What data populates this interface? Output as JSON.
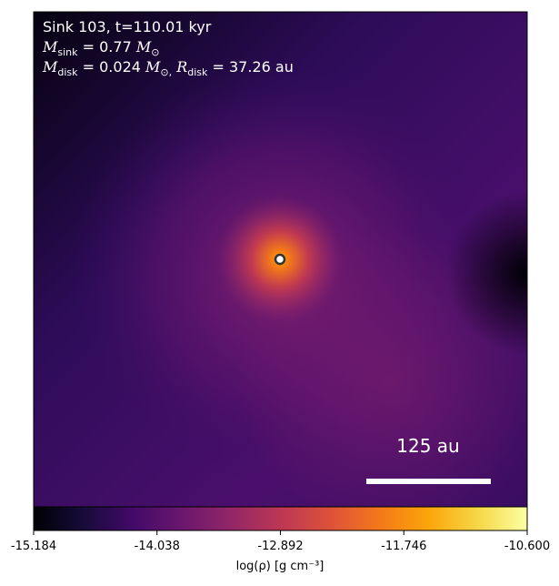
{
  "chart_data": {
    "type": "density-map",
    "annotations": {
      "sink": "Sink 103, t=110.01 kyr",
      "mass_symbol": "M",
      "mass_sub": "sink",
      "mass_value": "= 0.77",
      "mass_unit": "M",
      "mass_unit_sub": "⊙",
      "disk_symbol": "M",
      "disk_sub": "disk",
      "disk_value": "= 0.024",
      "disk_unit": "M",
      "disk_unit_sub": "⊙,",
      "radius_symbol": "R",
      "radius_sub": "disk",
      "radius_value": "= 37.26 au"
    },
    "scale_bar": "125 au",
    "colorbar": {
      "label": "log(ρ) [g cm⁻³]",
      "colormap": "inferno",
      "lim": [
        -15.184,
        -10.6
      ],
      "ticks": [
        -15.184,
        -14.038,
        -12.892,
        -11.746,
        {
          "value": -10.6,
          "label": "-10.600"
        }
      ]
    }
  }
}
